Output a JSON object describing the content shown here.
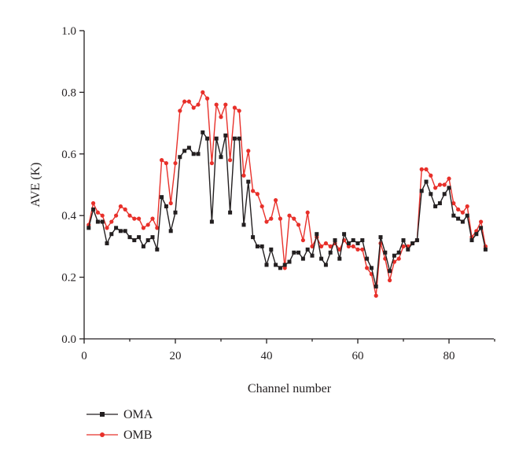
{
  "chart_data": {
    "type": "line",
    "xlabel": "Channel number",
    "ylabel": "AVE (K)",
    "xlim": [
      0,
      90
    ],
    "ylim": [
      0.0,
      1.0
    ],
    "x_ticks": [
      0,
      20,
      40,
      60,
      80
    ],
    "y_ticks": [
      "0.0",
      "0.2",
      "0.4",
      "0.6",
      "0.8",
      "1.0"
    ],
    "grid": false,
    "legend_position": "bottom-left",
    "x": [
      1,
      2,
      3,
      4,
      5,
      6,
      7,
      8,
      9,
      10,
      11,
      12,
      13,
      14,
      15,
      16,
      17,
      18,
      19,
      20,
      21,
      22,
      23,
      24,
      25,
      26,
      27,
      28,
      29,
      30,
      31,
      32,
      33,
      34,
      35,
      36,
      37,
      38,
      39,
      40,
      41,
      42,
      43,
      44,
      45,
      46,
      47,
      48,
      49,
      50,
      51,
      52,
      53,
      54,
      55,
      56,
      57,
      58,
      59,
      60,
      61,
      62,
      63,
      64,
      65,
      66,
      67,
      68,
      69,
      70,
      71,
      72,
      73,
      74,
      75,
      76,
      77,
      78,
      79,
      80,
      81,
      82,
      83,
      84,
      85,
      86,
      87,
      88
    ],
    "series": [
      {
        "name": "OMA",
        "color": "#231f20",
        "marker": "square",
        "values": [
          0.36,
          0.42,
          0.38,
          0.38,
          0.31,
          0.34,
          0.36,
          0.35,
          0.35,
          0.33,
          0.32,
          0.33,
          0.3,
          0.32,
          0.33,
          0.29,
          0.46,
          0.43,
          0.35,
          0.41,
          0.59,
          0.61,
          0.62,
          0.6,
          0.6,
          0.67,
          0.65,
          0.38,
          0.65,
          0.59,
          0.66,
          0.41,
          0.65,
          0.65,
          0.37,
          0.51,
          0.33,
          0.3,
          0.3,
          0.24,
          0.29,
          0.24,
          0.23,
          0.24,
          0.25,
          0.28,
          0.28,
          0.26,
          0.29,
          0.27,
          0.34,
          0.26,
          0.24,
          0.28,
          0.32,
          0.26,
          0.34,
          0.31,
          0.32,
          0.31,
          0.32,
          0.26,
          0.23,
          0.17,
          0.33,
          0.28,
          0.22,
          0.27,
          0.28,
          0.32,
          0.29,
          0.31,
          0.32,
          0.48,
          0.51,
          0.47,
          0.43,
          0.44,
          0.47,
          0.49,
          0.4,
          0.39,
          0.38,
          0.4,
          0.32,
          0.34,
          0.36,
          0.29
        ]
      },
      {
        "name": "OMB",
        "color": "#e8302a",
        "marker": "circle",
        "values": [
          0.37,
          0.44,
          0.41,
          0.4,
          0.36,
          0.38,
          0.4,
          0.43,
          0.42,
          0.4,
          0.39,
          0.39,
          0.36,
          0.37,
          0.39,
          0.36,
          0.58,
          0.57,
          0.44,
          0.57,
          0.74,
          0.77,
          0.77,
          0.75,
          0.76,
          0.8,
          0.78,
          0.57,
          0.76,
          0.72,
          0.76,
          0.58,
          0.75,
          0.74,
          0.53,
          0.61,
          0.48,
          0.47,
          0.43,
          0.38,
          0.39,
          0.45,
          0.39,
          0.23,
          0.4,
          0.39,
          0.37,
          0.32,
          0.41,
          0.3,
          0.33,
          0.3,
          0.31,
          0.3,
          0.31,
          0.29,
          0.32,
          0.3,
          0.3,
          0.29,
          0.29,
          0.23,
          0.21,
          0.14,
          0.31,
          0.26,
          0.19,
          0.25,
          0.26,
          0.3,
          0.3,
          0.31,
          0.32,
          0.55,
          0.55,
          0.53,
          0.49,
          0.5,
          0.5,
          0.52,
          0.44,
          0.42,
          0.41,
          0.43,
          0.33,
          0.35,
          0.38,
          0.3
        ]
      }
    ]
  }
}
